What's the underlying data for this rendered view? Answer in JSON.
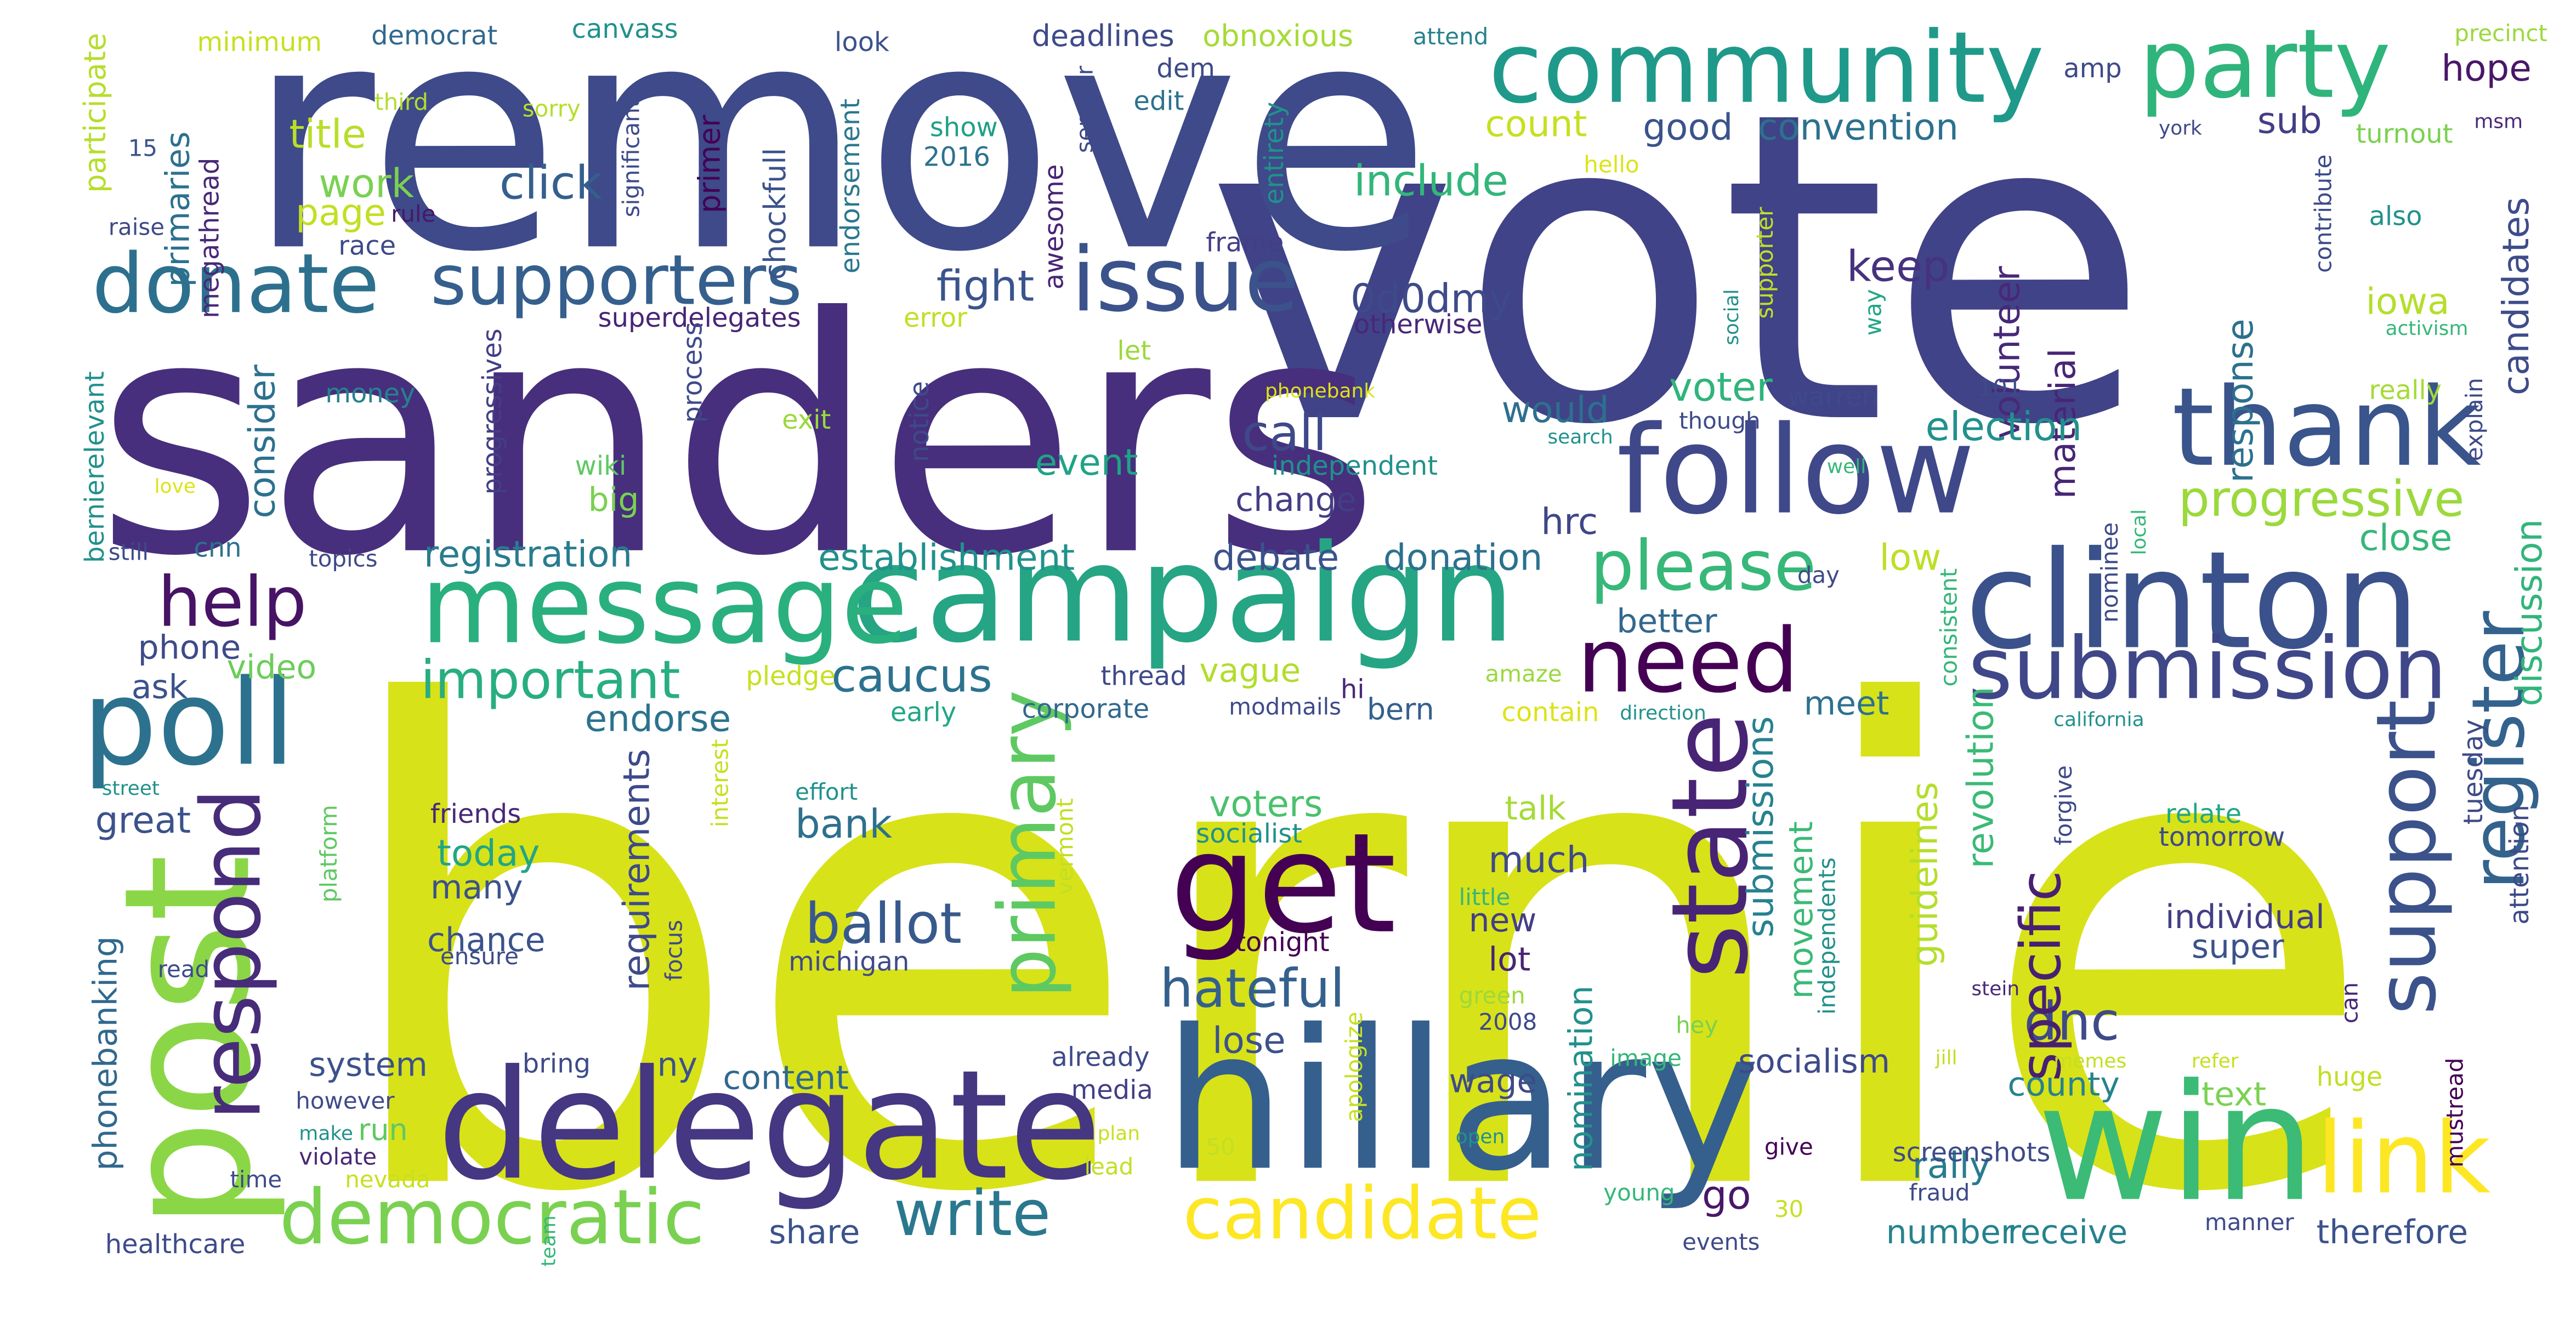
{
  "words": [
    "bernie",
    "vote",
    "sanders",
    "remove",
    "hillary",
    "campaign",
    "post",
    "win",
    "delegate",
    "message",
    "clinton",
    "community",
    "party",
    "follow",
    "thank",
    "get",
    "poll",
    "submission",
    "need",
    "state",
    "support",
    "donate",
    "issue",
    "supporters",
    "candidate",
    "link",
    "democratic",
    "respond",
    "primary",
    "register",
    "please",
    "help",
    "progressive",
    "important",
    "write",
    "ballot",
    "caucus",
    "hateful",
    "dnc",
    "registration",
    "establishment",
    "debate",
    "specific",
    "submissions",
    "call",
    "click",
    "include",
    "count",
    "convention",
    "good",
    "hope",
    "title",
    "work",
    "page",
    "sub",
    "fight",
    "keep",
    "material",
    "response",
    "candidates",
    "iowa",
    "volunteer",
    "voter",
    "election",
    "consider",
    "event",
    "change",
    "donation",
    "hrc",
    "would",
    "revolution",
    "low",
    "close",
    "better",
    "endorse",
    "phone",
    "ask",
    "video",
    "vague",
    "bern",
    "meet",
    "great",
    "bank",
    "requirements",
    "voters",
    "talk",
    "much",
    "today",
    "many",
    "chance",
    "discussion",
    "individual",
    "super",
    "guidelines",
    "movement",
    "system",
    "content",
    "ny",
    "lose",
    "nomination",
    "socialism",
    "county",
    "text",
    "rally",
    "go",
    "wage",
    "share",
    "number",
    "receive",
    "therefore",
    "new",
    "lot",
    "screenshots",
    "phonebanking",
    "healthcare",
    "run",
    "bring",
    "already",
    "media",
    "0d0dmy",
    "15",
    "minimum",
    "democrat",
    "canvass",
    "look",
    "deadlines",
    "obnoxious",
    "attend",
    "precinct",
    "third",
    "sorry",
    "participate",
    "primaries",
    "megathread",
    "raise",
    "rule",
    "race",
    "significant",
    "primer",
    "chockfull",
    "endorsement",
    "2016",
    "show",
    "dem",
    "edit",
    "entirety",
    "senator",
    "awesome",
    "frame",
    "superdelegates",
    "error",
    "otherwise",
    "let",
    "money",
    "exit",
    "process",
    "notice",
    "phonebank",
    "wiki",
    "big",
    "independent",
    "progressives",
    "bernierelevant",
    "love",
    "still",
    "cnn",
    "topics",
    "warren",
    "101",
    "though",
    "way",
    "supporter",
    "activism",
    "really",
    "explain",
    "well",
    "search",
    "social",
    "turnout",
    "msm",
    "contribute",
    "also",
    "amp",
    "york",
    "pledge",
    "thread",
    "corporate",
    "modmails",
    "amaze",
    "contain",
    "direction",
    "early",
    "california",
    "consistent",
    "attention",
    "tuesday",
    "tomorrow",
    "relate",
    "forgive",
    "street",
    "effort",
    "friends",
    "socialist",
    "interest",
    "platform",
    "vermont",
    "little",
    "hi",
    "tonight",
    "ensure",
    "read",
    "focus",
    "michigan",
    "independents",
    "green",
    "2008",
    "hey",
    "stein",
    "apologize",
    "image",
    "jill",
    "memes",
    "refer",
    "mustread",
    "huge",
    "can",
    "however",
    "make",
    "violate",
    "time",
    "nevada",
    "plan",
    "lead",
    "50",
    "open",
    "give",
    "fraud",
    "young",
    "30",
    "events",
    "team",
    "manner",
    "local",
    "day",
    "nominee",
    "hello"
  ],
  "palette": {
    "dark_purple": "#46277a",
    "indigo": "#3b528b",
    "blue": "#31688e",
    "teal": "#21918c",
    "green": "#35b779",
    "lime": "#8fd744",
    "yellow": "#dde318"
  }
}
